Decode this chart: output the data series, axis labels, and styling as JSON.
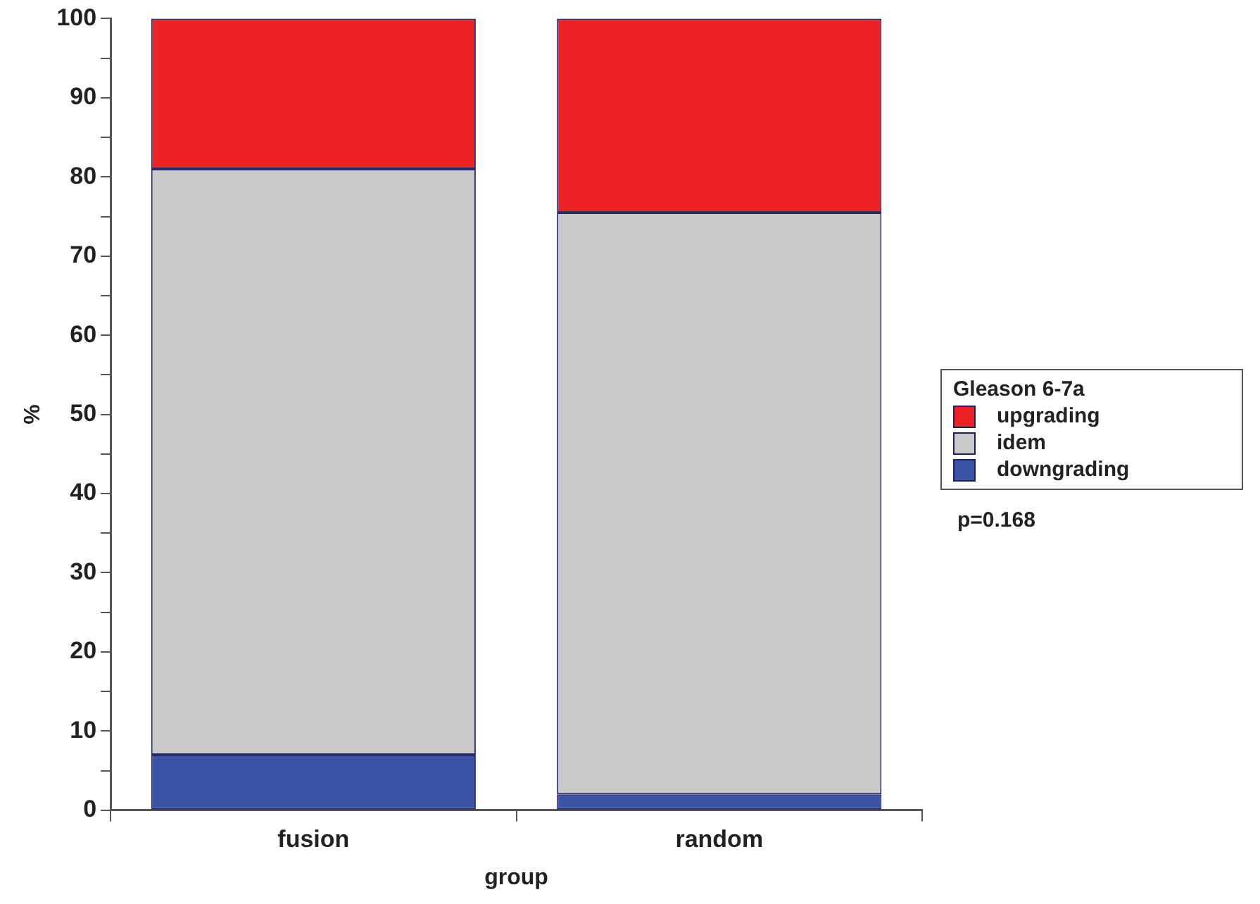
{
  "chart_data": {
    "type": "bar",
    "stacked": true,
    "xlabel": "group",
    "ylabel": "%",
    "legend_title": "Gleason 6-7a",
    "legend": "right",
    "categories": [
      "fusion",
      "random"
    ],
    "series": [
      {
        "name": "downgrading",
        "color": "#3a53a4",
        "values": [
          7,
          2
        ]
      },
      {
        "name": "idem",
        "color": "#c8c9cb",
        "values": [
          74,
          73.5
        ]
      },
      {
        "name": "upgrading",
        "color": "#ec2227",
        "values": [
          19,
          24.5
        ]
      }
    ],
    "ylim": [
      0,
      100
    ],
    "yticks": [
      0,
      {
        "value": 5,
        "label": null
      },
      10,
      {
        "value": 15,
        "label": null
      },
      20,
      {
        "value": 25,
        "label": null
      },
      30,
      {
        "value": 35,
        "label": null
      },
      40,
      {
        "value": 45,
        "label": null
      },
      50,
      {
        "value": 55,
        "label": null
      },
      60,
      {
        "value": 65,
        "label": null
      },
      70,
      {
        "value": 75,
        "label": null
      },
      80,
      {
        "value": 85,
        "label": null
      },
      90,
      {
        "value": 95,
        "label": null
      },
      100
    ],
    "grid": false,
    "annotations": [
      "p=0.168"
    ]
  }
}
